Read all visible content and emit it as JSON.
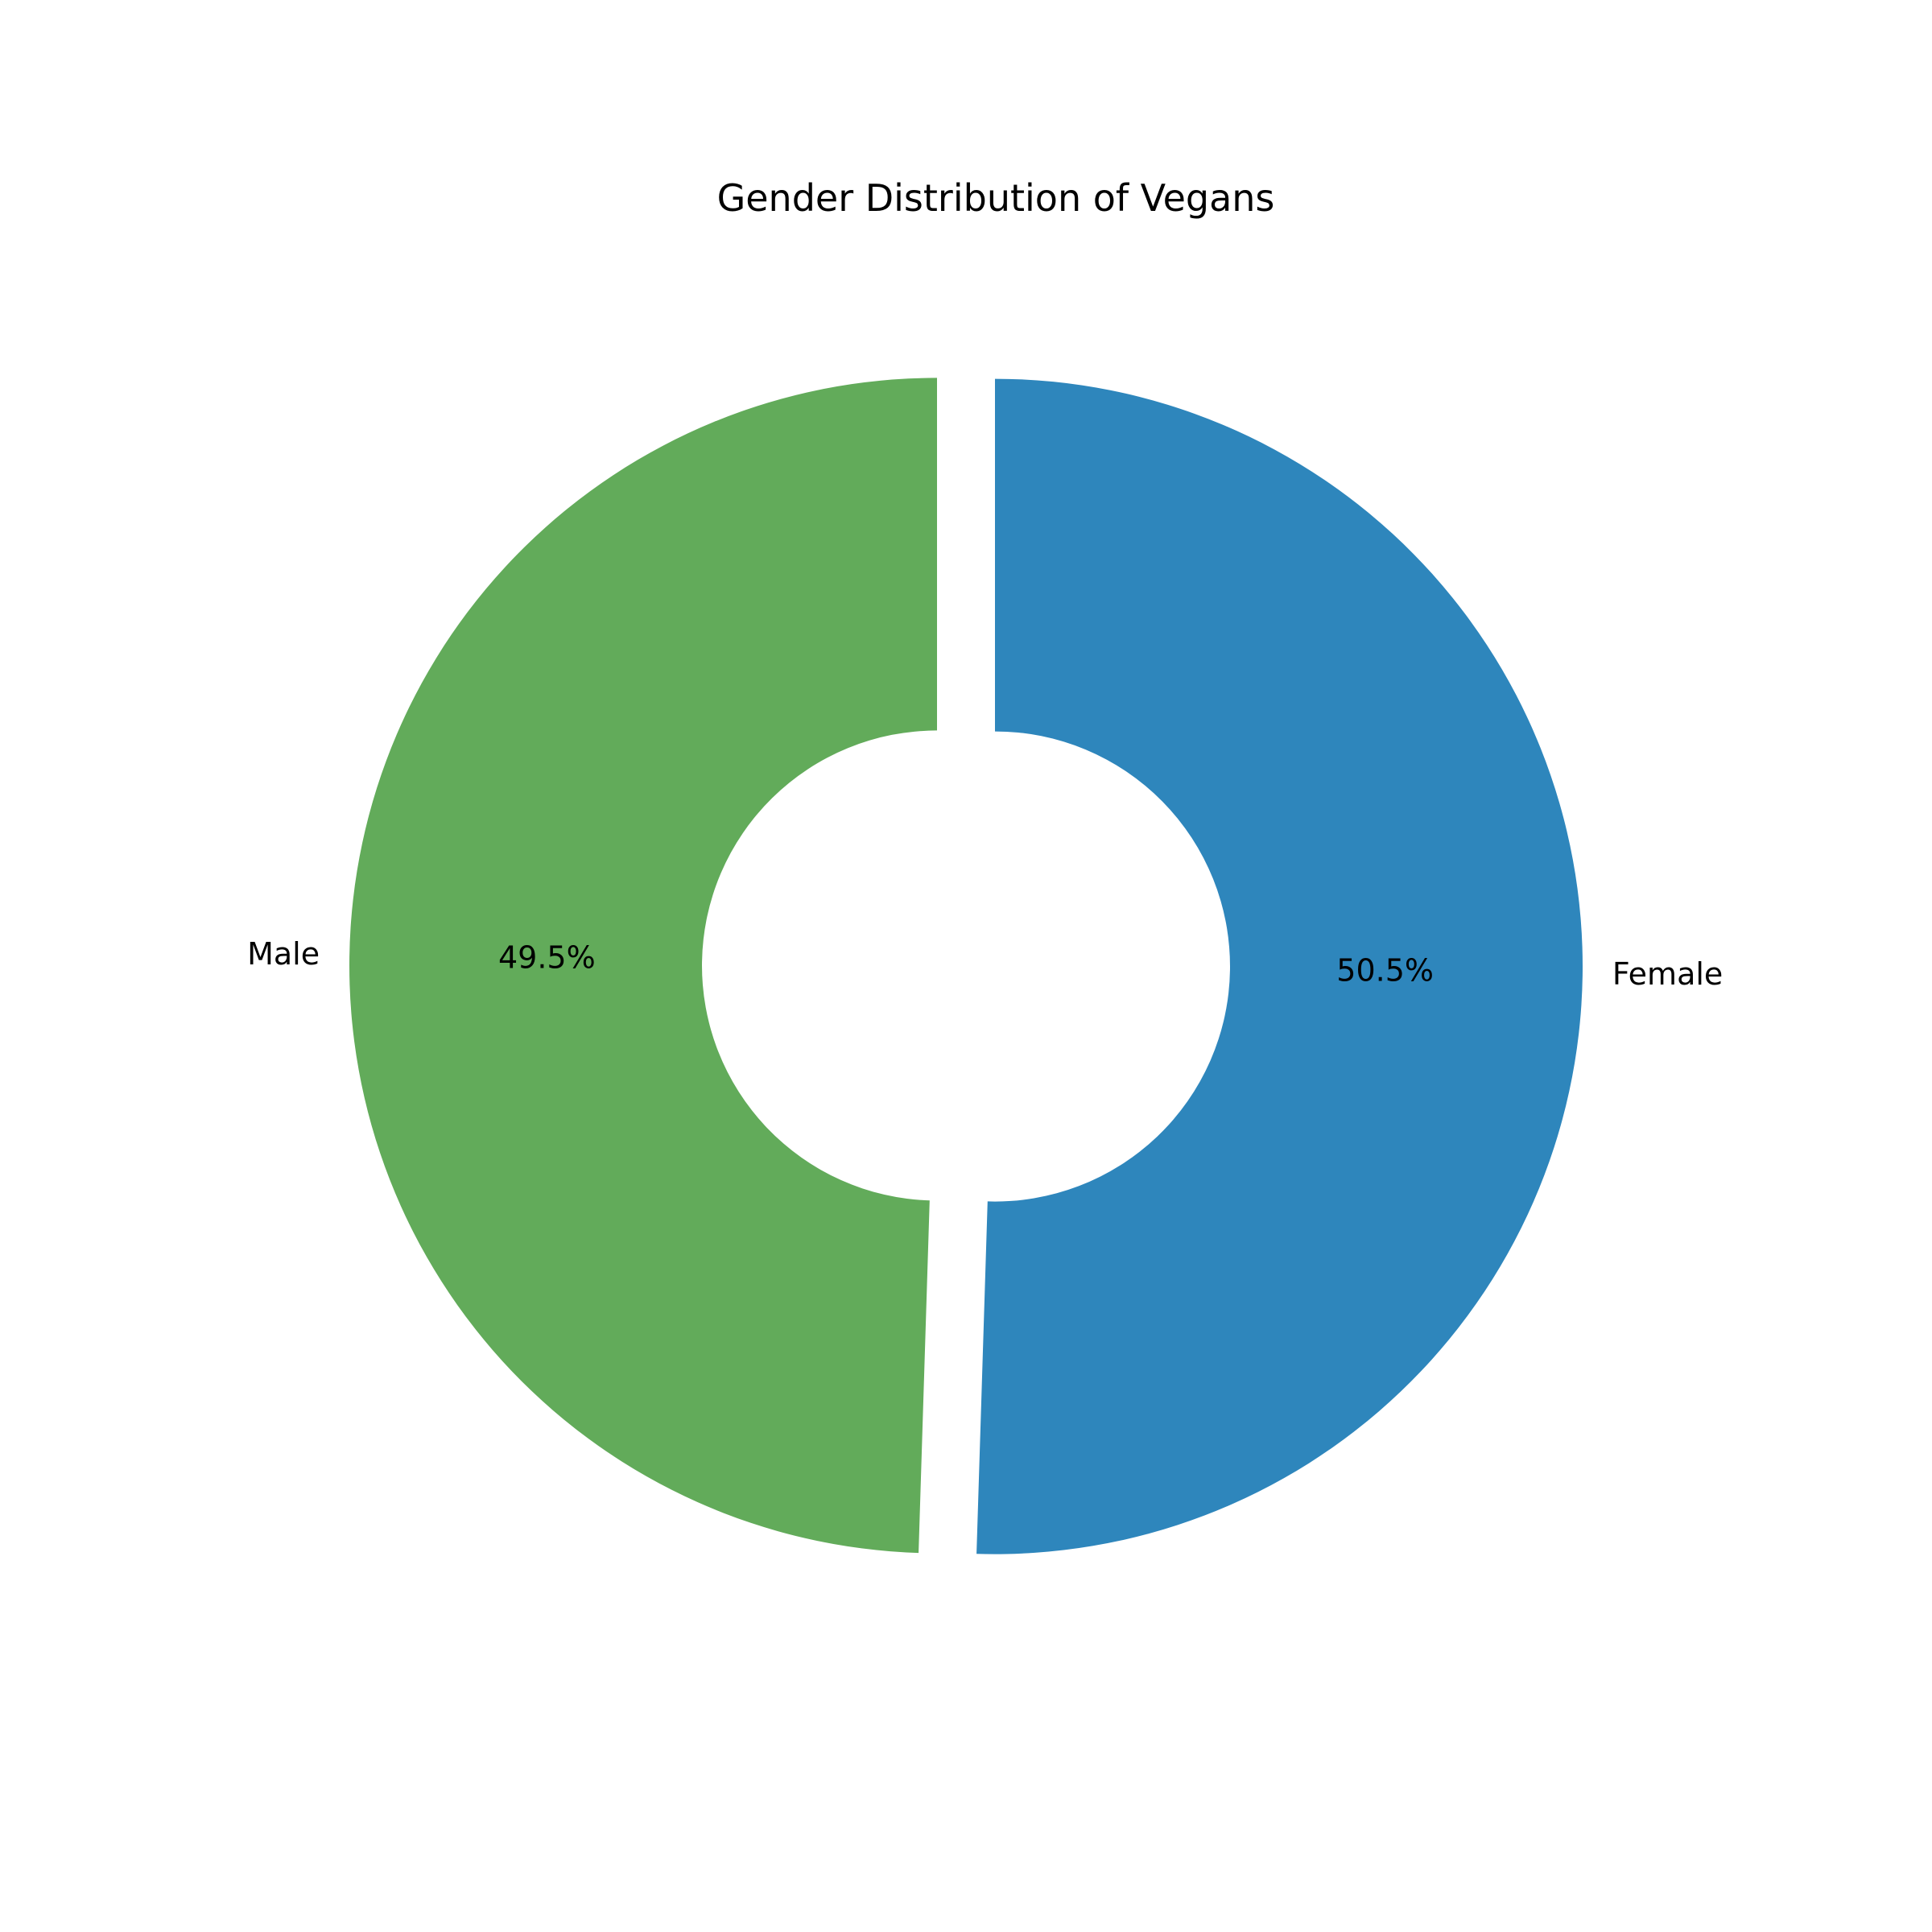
{
  "chart_data": {
    "type": "pie",
    "style": "donut",
    "title": "Gender Distribution of Vegans",
    "slices": [
      {
        "label": "Female",
        "value": 50.5,
        "display": "50.5%",
        "color": "#2e86bc"
      },
      {
        "label": "Male",
        "value": 49.5,
        "display": "49.5%",
        "color": "#62ab5a"
      }
    ],
    "legend": "none"
  }
}
